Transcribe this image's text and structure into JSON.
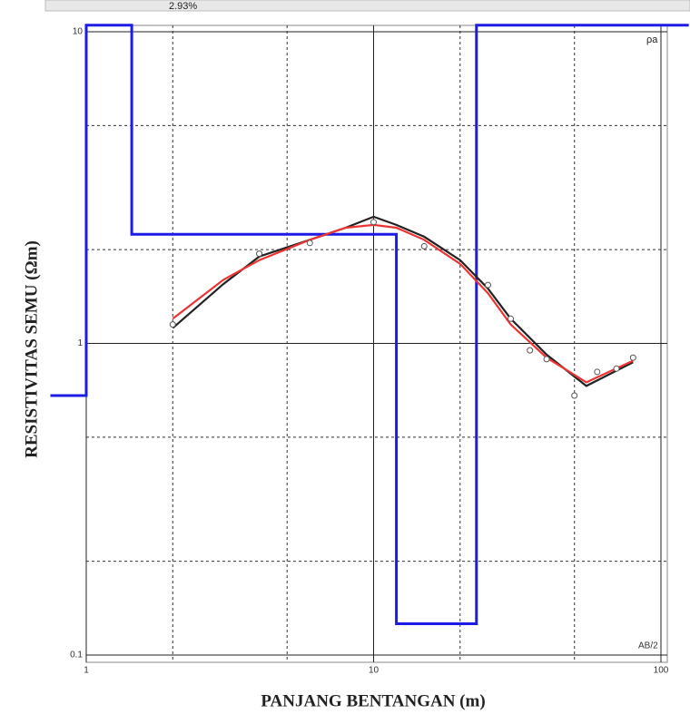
{
  "chart_data": {
    "type": "line",
    "header_text": "2.93%",
    "x_label": "PANJANG BENTANGAN (m)",
    "y_label": "RESISTIVITAS SEMU (Ωm)",
    "annotations": [
      "ρa",
      "AB/2"
    ],
    "log_x": true,
    "log_y": true,
    "grid": true,
    "xlim": [
      1,
      100
    ],
    "ylim": [
      0.1,
      10
    ],
    "xticks": [
      1,
      10,
      100
    ],
    "yticks": [
      0.1,
      1,
      10
    ],
    "minor_xticks": [
      2,
      5,
      20,
      50
    ],
    "minor_yticks": [
      0.2,
      0.5,
      2,
      5
    ],
    "series": [
      {
        "color": "#1c1ce6",
        "marker": "none",
        "x": [
          0.75,
          1,
          1,
          1.44,
          1.44,
          12,
          12,
          22.8,
          22.8,
          125
        ],
        "values": [
          0.68,
          0.68,
          10.5,
          10.5,
          2.24,
          2.24,
          0.126,
          0.126,
          10.5,
          10.5
        ]
      },
      {
        "color": "#222222",
        "marker": "none",
        "x": [
          2,
          3,
          4,
          6,
          8,
          10,
          12,
          15,
          20,
          25,
          30,
          40,
          55,
          80
        ],
        "values": [
          1.12,
          1.55,
          1.9,
          2.15,
          2.35,
          2.55,
          2.4,
          2.2,
          1.85,
          1.5,
          1.2,
          0.92,
          0.73,
          0.87
        ]
      },
      {
        "color": "#ee3333",
        "marker": "none",
        "x": [
          2,
          3,
          4,
          6,
          8,
          10,
          12,
          15,
          20,
          25,
          30,
          40,
          55,
          80
        ],
        "values": [
          1.2,
          1.6,
          1.85,
          2.15,
          2.35,
          2.4,
          2.35,
          2.15,
          1.8,
          1.45,
          1.15,
          0.9,
          0.75,
          0.88
        ]
      },
      {
        "color": "#555555",
        "marker": "circle",
        "x": [
          2,
          4,
          6,
          10,
          15,
          25,
          30,
          35,
          40,
          50,
          60,
          70,
          80
        ],
        "values": [
          1.15,
          1.94,
          2.1,
          2.45,
          2.05,
          1.54,
          1.2,
          0.95,
          0.89,
          0.68,
          0.81,
          0.83,
          0.9
        ]
      }
    ]
  }
}
